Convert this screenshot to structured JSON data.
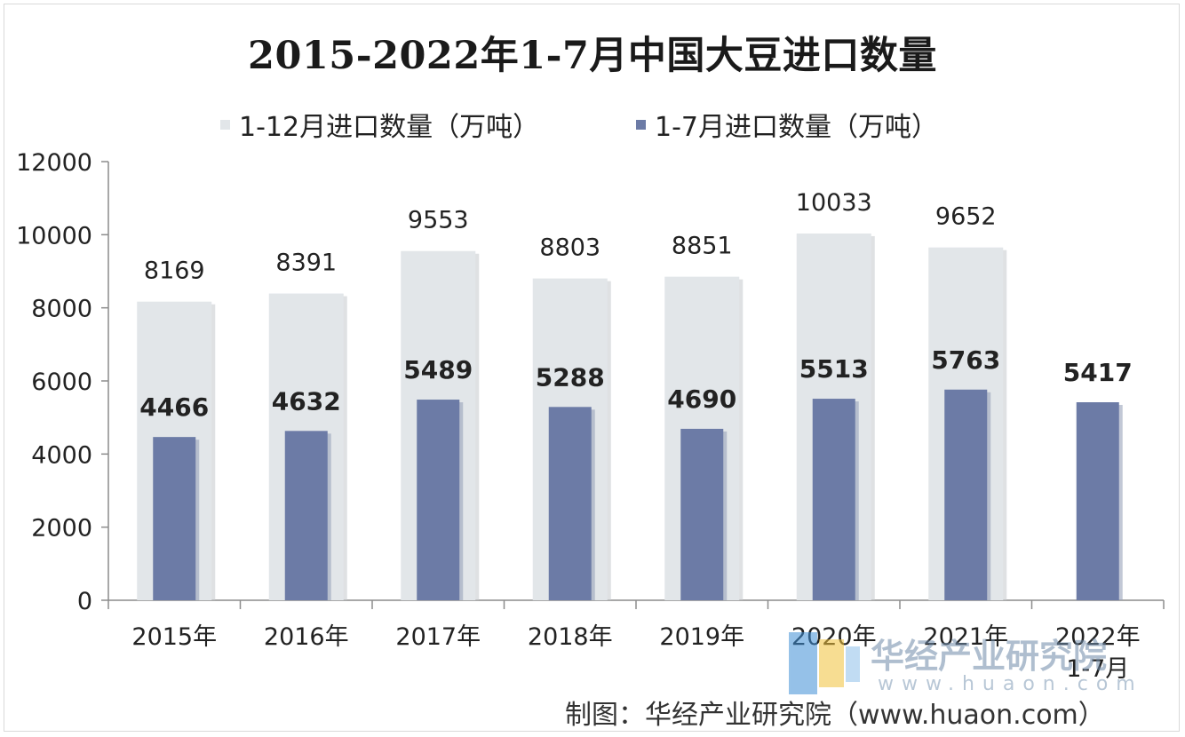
{
  "chart_data": {
    "type": "bar",
    "title": "2015-2022年1-7月中国大豆进口数量",
    "categories": [
      "2015年",
      "2016年",
      "2017年",
      "2018年",
      "2019年",
      "2020年",
      "2021年",
      "2022年\n1-7月"
    ],
    "series": [
      {
        "name": "1-12月进口数量（万吨）",
        "values": [
          8169,
          8391,
          9553,
          8803,
          8851,
          10033,
          9652,
          null
        ],
        "color": "#e2e6e9"
      },
      {
        "name": "1-7月进口数量（万吨）",
        "values": [
          4466,
          4632,
          5489,
          5288,
          4690,
          5513,
          5763,
          5417
        ],
        "color": "#6c7ba6"
      }
    ],
    "ylim": [
      0,
      12000
    ],
    "yticks": [
      0,
      2000,
      4000,
      6000,
      8000,
      10000,
      12000
    ],
    "grid": false,
    "legend": "top-center"
  },
  "footer": "制图：华经产业研究院（www.huaon.com）",
  "watermark": {
    "text": "华经产业研究院",
    "url": "www.huaon.com"
  }
}
